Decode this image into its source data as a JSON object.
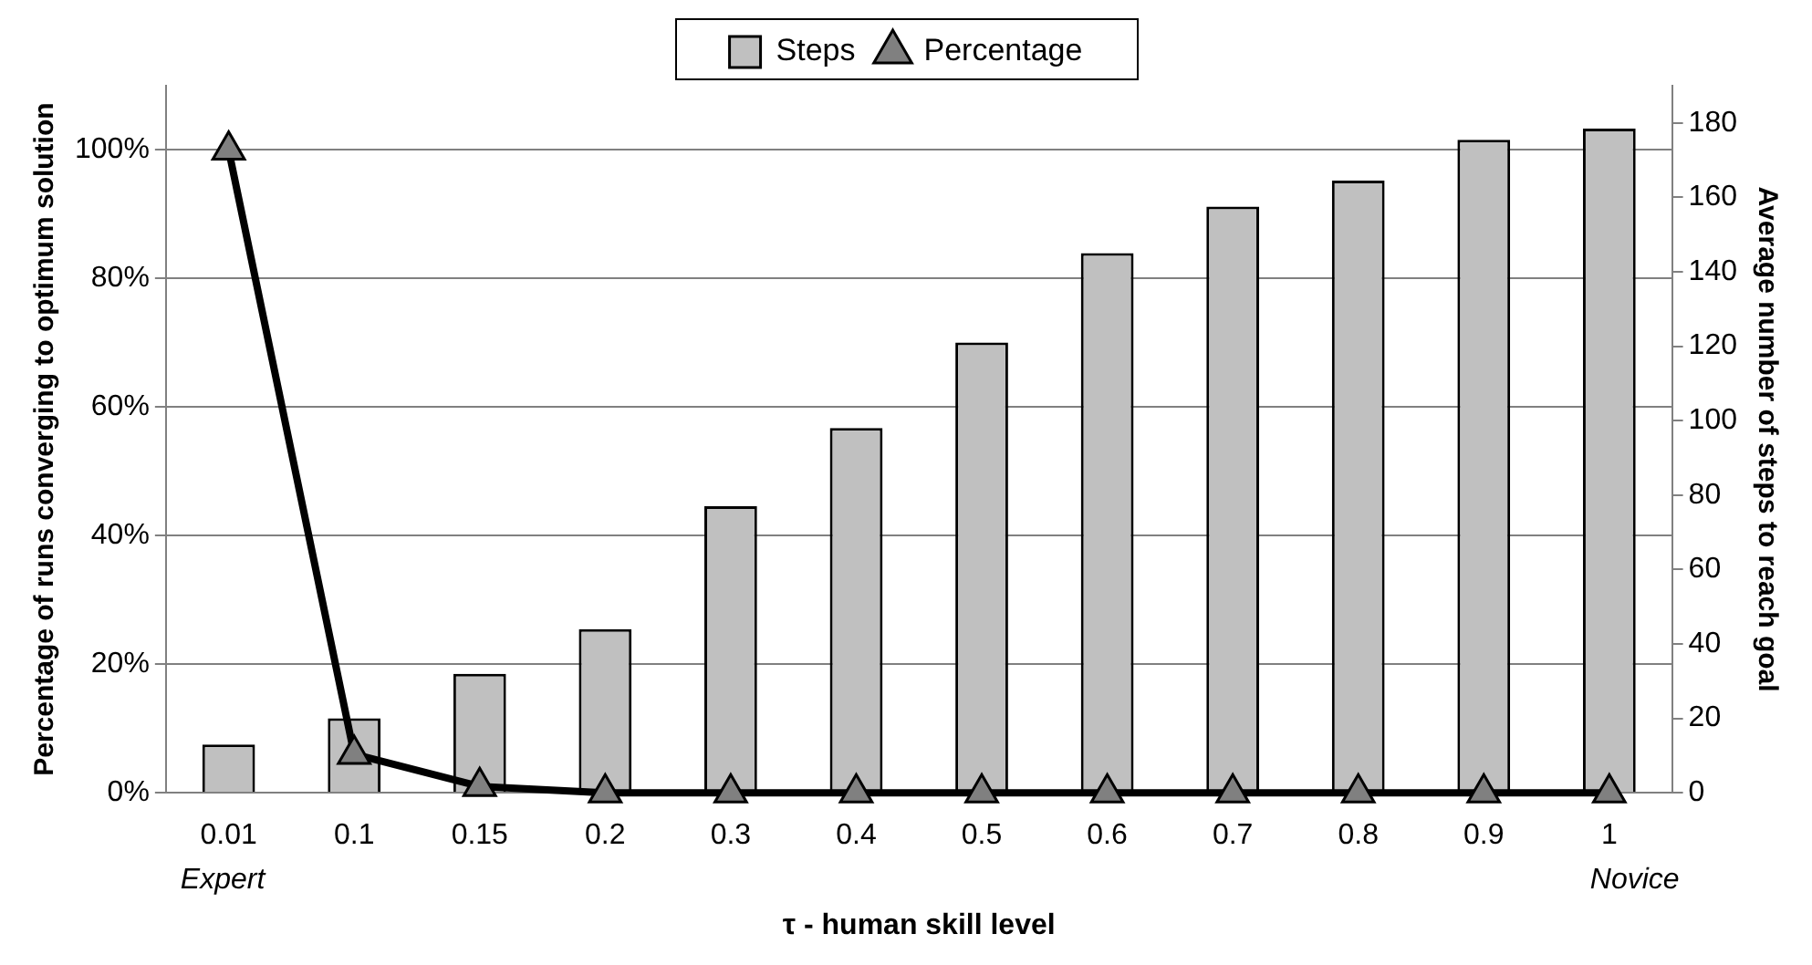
{
  "chart_data": {
    "type": "bar",
    "xlabel": "τ - human skill level",
    "ylabel": "Percentage of runs converging to optimum solution",
    "y2label": "Average number of steps to reach goal",
    "categories": [
      "0.01",
      "0.1",
      "0.15",
      "0.2",
      "0.3",
      "0.4",
      "0.5",
      "0.6",
      "0.7",
      "0.8",
      "0.9",
      "1"
    ],
    "series": [
      {
        "name": "Steps",
        "axis": "y2",
        "color": "#c0c0c0",
        "values": [
          13,
          20,
          32,
          44,
          77,
          98,
          121,
          145,
          157.5,
          164.5,
          175.5,
          178.5
        ]
      },
      {
        "name": "Percentage",
        "type": "line",
        "color": "#000000",
        "marker": "triangle",
        "values": [
          100,
          6,
          1,
          0,
          0,
          0,
          0,
          0,
          0,
          0,
          0,
          0
        ]
      }
    ],
    "ylim": [
      0,
      110
    ],
    "yticks": [
      {
        "value": 0,
        "label": "0%"
      },
      {
        "value": 20,
        "label": "20%"
      },
      {
        "value": 40,
        "label": "40%"
      },
      {
        "value": 60,
        "label": "60%"
      },
      {
        "value": 80,
        "label": "80%"
      },
      {
        "value": 100,
        "label": "100%"
      }
    ],
    "y2lim": [
      0,
      190
    ],
    "y2ticks": [
      0,
      20,
      40,
      60,
      80,
      100,
      120,
      140,
      160,
      180
    ],
    "grid": "y",
    "legend": "top",
    "line_style": "solid",
    "annotations": [
      "Expert",
      "Novice"
    ]
  }
}
